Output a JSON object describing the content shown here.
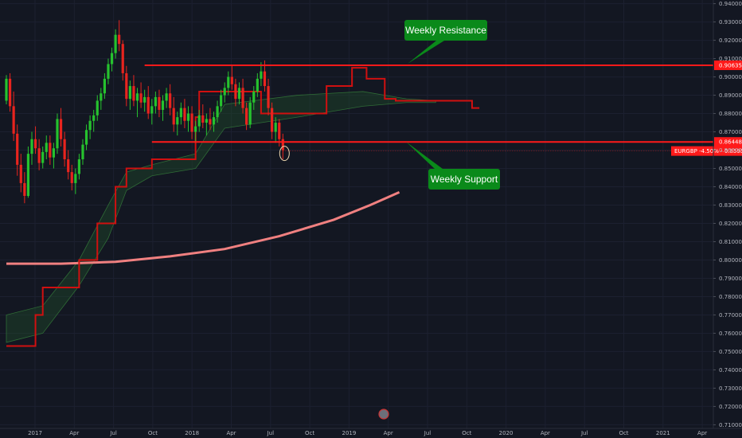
{
  "chart_data": {
    "type": "candlestick",
    "symbol_label": "EURGBP -4.50% - 0.85952",
    "x_ticks": [
      "2017",
      "Apr",
      "Jul",
      "Oct",
      "2018",
      "Apr",
      "Jul",
      "Oct",
      "2019",
      "Apr",
      "Jul",
      "Oct",
      "2020",
      "Apr",
      "Jul",
      "Oct",
      "2021",
      "Apr"
    ],
    "y_ticks": [
      "0.94000",
      "0.93000",
      "0.92000",
      "0.91000",
      "0.90000",
      "0.89000",
      "0.88000",
      "0.87000",
      "0.86000",
      "0.85000",
      "0.84000",
      "0.83000",
      "0.82000",
      "0.81000",
      "0.80000",
      "0.79000",
      "0.78000",
      "0.77000",
      "0.76000",
      "0.75000",
      "0.74000",
      "0.73000",
      "0.72000",
      "0.71000"
    ],
    "ylim": [
      0.708,
      0.942
    ],
    "levels": [
      {
        "name": "resistance",
        "value": 0.90635,
        "label": "0.90635",
        "color": "#ff1a1a"
      },
      {
        "name": "support",
        "value": 0.86448,
        "label": "0.86448",
        "color": "#ff1a1a"
      }
    ],
    "last_price": 0.85952,
    "annotations": [
      {
        "name": "weekly-resistance",
        "text": "Weekly Resistance"
      },
      {
        "name": "weekly-support",
        "text": "Weekly Support"
      }
    ],
    "candles": [
      [
        0.887,
        0.901,
        0.885,
        0.899
      ],
      [
        0.899,
        0.902,
        0.881,
        0.884
      ],
      [
        0.884,
        0.892,
        0.865,
        0.869
      ],
      [
        0.869,
        0.874,
        0.846,
        0.852
      ],
      [
        0.852,
        0.858,
        0.837,
        0.842
      ],
      [
        0.842,
        0.848,
        0.831,
        0.835
      ],
      [
        0.835,
        0.862,
        0.834,
        0.858
      ],
      [
        0.858,
        0.87,
        0.852,
        0.866
      ],
      [
        0.866,
        0.873,
        0.858,
        0.861
      ],
      [
        0.861,
        0.866,
        0.849,
        0.853
      ],
      [
        0.853,
        0.862,
        0.85,
        0.859
      ],
      [
        0.859,
        0.868,
        0.855,
        0.864
      ],
      [
        0.864,
        0.868,
        0.852,
        0.856
      ],
      [
        0.856,
        0.864,
        0.85,
        0.861
      ],
      [
        0.861,
        0.88,
        0.858,
        0.877
      ],
      [
        0.877,
        0.883,
        0.862,
        0.866
      ],
      [
        0.866,
        0.87,
        0.851,
        0.855
      ],
      [
        0.855,
        0.86,
        0.844,
        0.848
      ],
      [
        0.848,
        0.852,
        0.838,
        0.842
      ],
      [
        0.842,
        0.85,
        0.836,
        0.847
      ],
      [
        0.847,
        0.858,
        0.844,
        0.855
      ],
      [
        0.855,
        0.866,
        0.852,
        0.863
      ],
      [
        0.863,
        0.874,
        0.86,
        0.871
      ],
      [
        0.871,
        0.879,
        0.866,
        0.876
      ],
      [
        0.876,
        0.882,
        0.87,
        0.879
      ],
      [
        0.879,
        0.89,
        0.876,
        0.887
      ],
      [
        0.887,
        0.894,
        0.882,
        0.891
      ],
      [
        0.891,
        0.902,
        0.888,
        0.899
      ],
      [
        0.899,
        0.91,
        0.896,
        0.907
      ],
      [
        0.907,
        0.916,
        0.903,
        0.913
      ],
      [
        0.913,
        0.926,
        0.91,
        0.923
      ],
      [
        0.923,
        0.931,
        0.914,
        0.918
      ],
      [
        0.918,
        0.92,
        0.898,
        0.902
      ],
      [
        0.902,
        0.906,
        0.884,
        0.888
      ],
      [
        0.888,
        0.898,
        0.882,
        0.895
      ],
      [
        0.895,
        0.901,
        0.884,
        0.887
      ],
      [
        0.887,
        0.894,
        0.878,
        0.891
      ],
      [
        0.891,
        0.897,
        0.883,
        0.886
      ],
      [
        0.886,
        0.893,
        0.881,
        0.889
      ],
      [
        0.889,
        0.895,
        0.877,
        0.88
      ],
      [
        0.88,
        0.888,
        0.874,
        0.884
      ],
      [
        0.884,
        0.892,
        0.88,
        0.889
      ],
      [
        0.889,
        0.893,
        0.878,
        0.882
      ],
      [
        0.882,
        0.89,
        0.876,
        0.887
      ],
      [
        0.887,
        0.894,
        0.883,
        0.891
      ],
      [
        0.891,
        0.896,
        0.879,
        0.883
      ],
      [
        0.883,
        0.889,
        0.87,
        0.874
      ],
      [
        0.874,
        0.881,
        0.868,
        0.878
      ],
      [
        0.878,
        0.886,
        0.874,
        0.883
      ],
      [
        0.883,
        0.888,
        0.872,
        0.876
      ],
      [
        0.876,
        0.884,
        0.87,
        0.88
      ],
      [
        0.88,
        0.884,
        0.866,
        0.87
      ],
      [
        0.87,
        0.876,
        0.864,
        0.873
      ],
      [
        0.873,
        0.882,
        0.87,
        0.879
      ],
      [
        0.879,
        0.885,
        0.872,
        0.875
      ],
      [
        0.875,
        0.88,
        0.868,
        0.877
      ],
      [
        0.877,
        0.883,
        0.871,
        0.874
      ],
      [
        0.874,
        0.881,
        0.87,
        0.878
      ],
      [
        0.878,
        0.887,
        0.875,
        0.884
      ],
      [
        0.884,
        0.893,
        0.881,
        0.89
      ],
      [
        0.89,
        0.897,
        0.886,
        0.894
      ],
      [
        0.894,
        0.903,
        0.89,
        0.9
      ],
      [
        0.9,
        0.906,
        0.893,
        0.896
      ],
      [
        0.896,
        0.899,
        0.884,
        0.888
      ],
      [
        0.888,
        0.897,
        0.885,
        0.894
      ],
      [
        0.894,
        0.899,
        0.88,
        0.883
      ],
      [
        0.883,
        0.886,
        0.871,
        0.874
      ],
      [
        0.874,
        0.889,
        0.872,
        0.886
      ],
      [
        0.886,
        0.895,
        0.882,
        0.892
      ],
      [
        0.892,
        0.902,
        0.889,
        0.899
      ],
      [
        0.899,
        0.908,
        0.895,
        0.903
      ],
      [
        0.903,
        0.909,
        0.892,
        0.895
      ],
      [
        0.895,
        0.899,
        0.879,
        0.883
      ],
      [
        0.883,
        0.886,
        0.866,
        0.87
      ],
      [
        0.87,
        0.878,
        0.864,
        0.875
      ],
      [
        0.875,
        0.877,
        0.862,
        0.866
      ],
      [
        0.866,
        0.869,
        0.855,
        0.86
      ]
    ],
    "lines": {
      "long_ma": {
        "color": "#f08080",
        "points": [
          [
            0,
            0.798
          ],
          [
            15,
            0.798
          ],
          [
            30,
            0.799
          ],
          [
            45,
            0.802
          ],
          [
            60,
            0.806
          ],
          [
            75,
            0.813
          ],
          [
            90,
            0.822
          ],
          [
            100,
            0.83
          ],
          [
            108,
            0.837
          ]
        ]
      },
      "kijun": {
        "color": "#d01010",
        "points": [
          [
            0,
            0.753
          ],
          [
            8,
            0.753
          ],
          [
            8,
            0.77
          ],
          [
            10,
            0.77
          ],
          [
            10,
            0.785
          ],
          [
            20,
            0.785
          ],
          [
            20,
            0.8
          ],
          [
            25,
            0.8
          ],
          [
            25,
            0.82
          ],
          [
            30,
            0.82
          ],
          [
            30,
            0.84
          ],
          [
            33,
            0.84
          ],
          [
            33,
            0.85
          ],
          [
            40,
            0.85
          ],
          [
            40,
            0.855
          ],
          [
            52,
            0.855
          ],
          [
            52,
            0.878
          ],
          [
            53,
            0.878
          ],
          [
            53,
            0.892
          ],
          [
            70,
            0.892
          ],
          [
            70,
            0.88
          ],
          [
            88,
            0.88
          ],
          [
            88,
            0.895
          ],
          [
            95,
            0.895
          ],
          [
            95,
            0.905
          ],
          [
            99,
            0.905
          ],
          [
            99,
            0.899
          ],
          [
            104,
            0.899
          ],
          [
            104,
            0.888
          ],
          [
            107,
            0.888
          ],
          [
            107,
            0.887
          ],
          [
            128,
            0.887
          ],
          [
            128,
            0.883
          ],
          [
            130,
            0.883
          ]
        ]
      }
    }
  },
  "colors": {
    "bg": "#131722",
    "up": "#26c22e",
    "down": "#e8241e",
    "level": "#ff1a1a",
    "callout": "#0a8a1a",
    "axis_text": "#b2b5be"
  }
}
